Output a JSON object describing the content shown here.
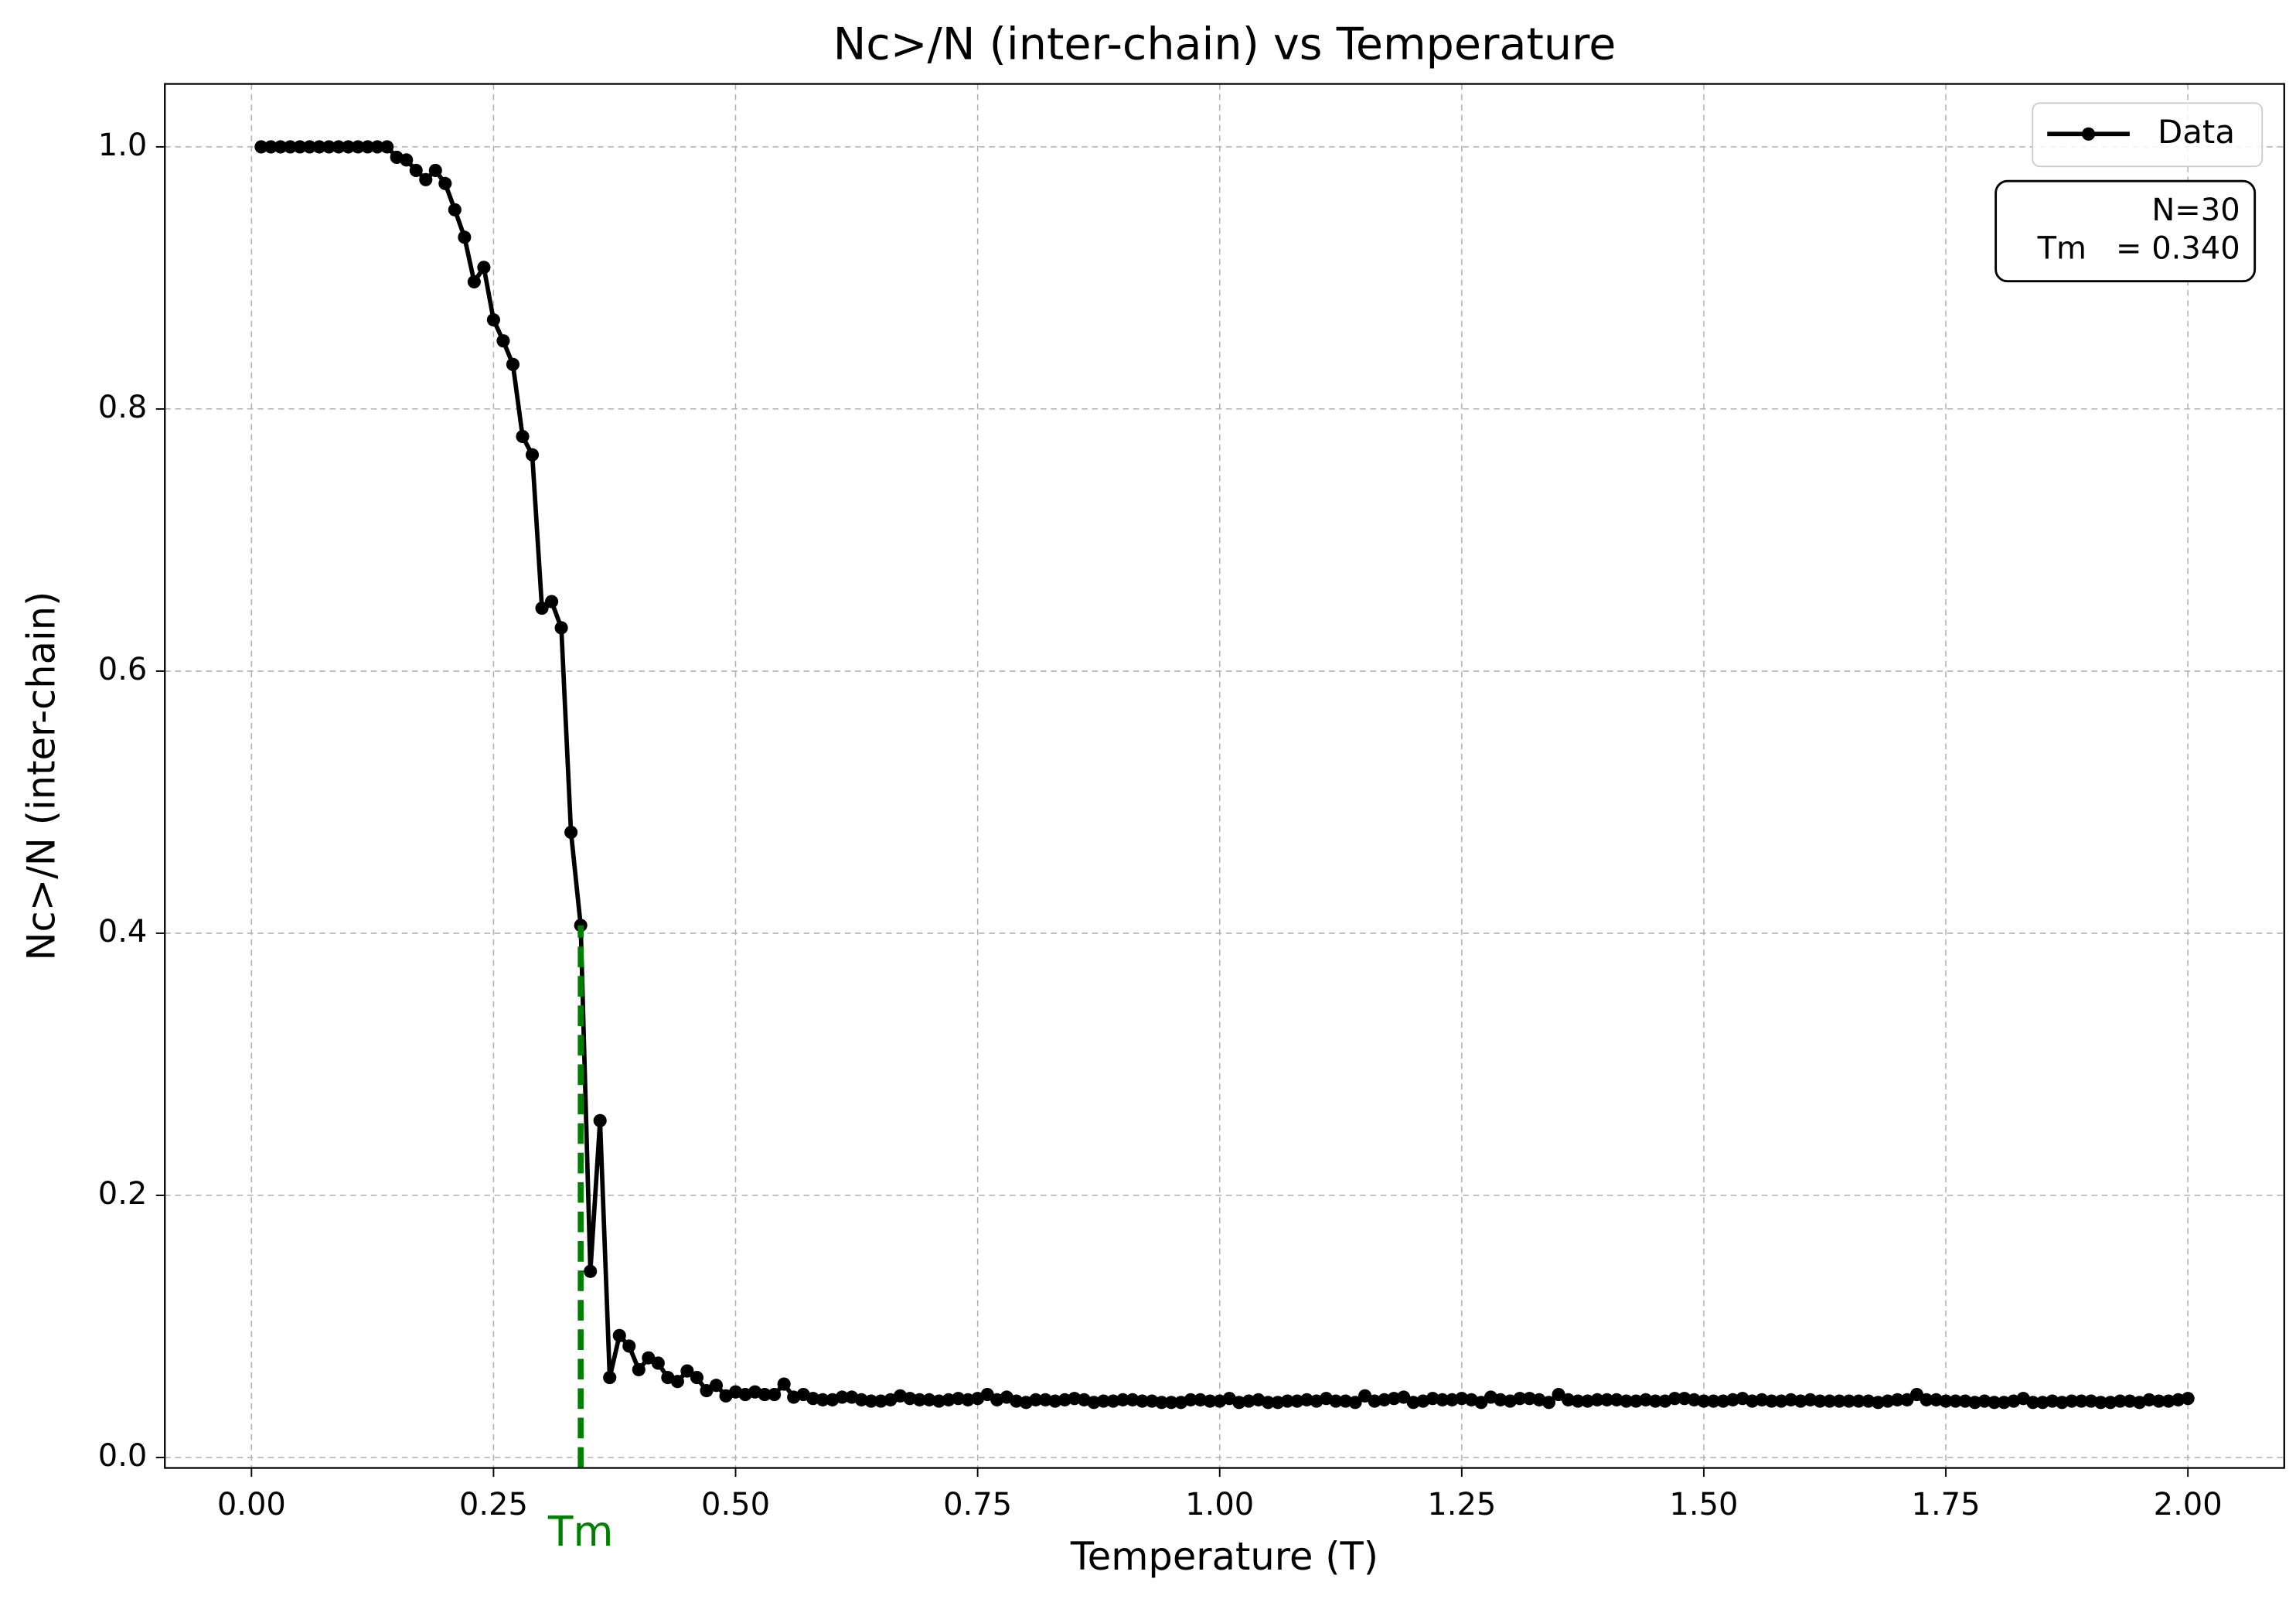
{
  "chart_data": {
    "type": "line",
    "title": "Nc>/N (inter-chain) vs Temperature",
    "xlabel": "Temperature (T)",
    "ylabel": "Nc>/N (inter-chain)",
    "x": [
      0.01,
      0.02,
      0.03,
      0.04,
      0.05,
      0.06,
      0.07,
      0.08,
      0.09,
      0.1,
      0.11,
      0.12,
      0.13,
      0.14,
      0.15,
      0.16,
      0.17,
      0.18,
      0.19,
      0.2,
      0.21,
      0.22,
      0.23,
      0.24,
      0.25,
      0.26,
      0.27,
      0.28,
      0.29,
      0.3,
      0.31,
      0.32,
      0.33,
      0.34,
      0.35,
      0.36,
      0.37,
      0.38,
      0.39,
      0.4,
      0.41,
      0.42,
      0.43,
      0.44,
      0.45,
      0.46,
      0.47,
      0.48,
      0.49,
      0.5,
      0.51,
      0.52,
      0.53,
      0.54,
      0.55,
      0.56,
      0.57,
      0.58,
      0.59,
      0.6,
      0.61,
      0.62,
      0.63,
      0.64,
      0.65,
      0.66,
      0.67,
      0.68,
      0.69,
      0.7,
      0.71,
      0.72,
      0.73,
      0.74,
      0.75,
      0.76,
      0.77,
      0.78,
      0.79,
      0.8,
      0.81,
      0.82,
      0.83,
      0.84,
      0.85,
      0.86,
      0.87,
      0.88,
      0.89,
      0.9,
      0.91,
      0.92,
      0.93,
      0.94,
      0.95,
      0.96,
      0.97,
      0.98,
      0.99,
      1.0,
      1.01,
      1.02,
      1.03,
      1.04,
      1.05,
      1.06,
      1.07,
      1.08,
      1.09,
      1.1,
      1.11,
      1.12,
      1.13,
      1.14,
      1.15,
      1.16,
      1.17,
      1.18,
      1.19,
      1.2,
      1.21,
      1.22,
      1.23,
      1.24,
      1.25,
      1.26,
      1.27,
      1.28,
      1.29,
      1.3,
      1.31,
      1.32,
      1.33,
      1.34,
      1.35,
      1.36,
      1.37,
      1.38,
      1.39,
      1.4,
      1.41,
      1.42,
      1.43,
      1.44,
      1.45,
      1.46,
      1.47,
      1.48,
      1.49,
      1.5,
      1.51,
      1.52,
      1.53,
      1.54,
      1.55,
      1.56,
      1.57,
      1.58,
      1.59,
      1.6,
      1.61,
      1.62,
      1.63,
      1.64,
      1.65,
      1.66,
      1.67,
      1.68,
      1.69,
      1.7,
      1.71,
      1.72,
      1.73,
      1.74,
      1.75,
      1.76,
      1.77,
      1.78,
      1.79,
      1.8,
      1.81,
      1.82,
      1.83,
      1.84,
      1.85,
      1.86,
      1.87,
      1.88,
      1.89,
      1.9,
      1.91,
      1.92,
      1.93,
      1.94,
      1.95,
      1.96,
      1.97,
      1.98,
      1.99,
      2.0
    ],
    "series": [
      {
        "name": "Data",
        "color": "#000000",
        "values": [
          1.0,
          1.0,
          1.0,
          1.0,
          1.0,
          1.0,
          1.0,
          1.0,
          1.0,
          1.0,
          1.0,
          1.0,
          1.0,
          1.0,
          0.992,
          0.99,
          0.982,
          0.975,
          0.982,
          0.972,
          0.952,
          0.931,
          0.897,
          0.908,
          0.868,
          0.852,
          0.834,
          0.779,
          0.765,
          0.648,
          0.653,
          0.633,
          0.477,
          0.406,
          0.142,
          0.257,
          0.061,
          0.093,
          0.085,
          0.067,
          0.076,
          0.072,
          0.061,
          0.058,
          0.066,
          0.061,
          0.051,
          0.055,
          0.047,
          0.05,
          0.048,
          0.05,
          0.048,
          0.048,
          0.056,
          0.046,
          0.048,
          0.045,
          0.044,
          0.044,
          0.046,
          0.046,
          0.044,
          0.043,
          0.043,
          0.044,
          0.047,
          0.045,
          0.044,
          0.044,
          0.043,
          0.044,
          0.045,
          0.044,
          0.045,
          0.048,
          0.044,
          0.046,
          0.043,
          0.042,
          0.044,
          0.044,
          0.043,
          0.044,
          0.045,
          0.044,
          0.042,
          0.043,
          0.043,
          0.044,
          0.044,
          0.043,
          0.043,
          0.042,
          0.042,
          0.042,
          0.044,
          0.044,
          0.043,
          0.043,
          0.045,
          0.042,
          0.043,
          0.044,
          0.042,
          0.042,
          0.043,
          0.043,
          0.044,
          0.043,
          0.045,
          0.043,
          0.043,
          0.042,
          0.047,
          0.043,
          0.044,
          0.045,
          0.046,
          0.042,
          0.043,
          0.045,
          0.044,
          0.044,
          0.045,
          0.044,
          0.042,
          0.046,
          0.044,
          0.043,
          0.045,
          0.045,
          0.044,
          0.042,
          0.048,
          0.044,
          0.043,
          0.043,
          0.044,
          0.044,
          0.044,
          0.043,
          0.043,
          0.044,
          0.043,
          0.043,
          0.045,
          0.045,
          0.044,
          0.043,
          0.043,
          0.043,
          0.044,
          0.045,
          0.043,
          0.044,
          0.043,
          0.043,
          0.044,
          0.043,
          0.044,
          0.043,
          0.043,
          0.043,
          0.043,
          0.043,
          0.043,
          0.042,
          0.043,
          0.044,
          0.044,
          0.048,
          0.044,
          0.044,
          0.043,
          0.043,
          0.043,
          0.042,
          0.043,
          0.042,
          0.042,
          0.043,
          0.045,
          0.042,
          0.042,
          0.043,
          0.042,
          0.043,
          0.043,
          0.043,
          0.042,
          0.042,
          0.043,
          0.043,
          0.042,
          0.044,
          0.043,
          0.043,
          0.044,
          0.045
        ]
      }
    ],
    "xlim": [
      -0.0895,
      2.0995
    ],
    "ylim": [
      -0.008,
      1.048
    ],
    "xticks": [
      {
        "value": 0,
        "label": "0.00"
      },
      {
        "value": 0.25,
        "label": "0.25"
      },
      {
        "value": 0.5,
        "label": "0.50"
      },
      {
        "value": 0.75,
        "label": "0.75"
      },
      {
        "value": 1,
        "label": "1.00"
      },
      {
        "value": 1.25,
        "label": "1.25"
      },
      {
        "value": 1.5,
        "label": "1.50"
      },
      {
        "value": 1.75,
        "label": "1.75"
      },
      {
        "value": 2,
        "label": "2.00"
      }
    ],
    "yticks": [
      {
        "value": 0,
        "label": "0.0"
      },
      {
        "value": 0.2,
        "label": "0.2"
      },
      {
        "value": 0.4,
        "label": "0.4"
      },
      {
        "value": 0.6,
        "label": "0.6"
      },
      {
        "value": 0.8,
        "label": "0.8"
      },
      {
        "value": 1,
        "label": "1.0"
      }
    ],
    "grid": true,
    "legend": "upper right",
    "vline": {
      "x": 0.34,
      "y": [
        0,
        0.406
      ],
      "label": "Tm",
      "color": "#008000"
    },
    "annotation": [
      "N=30",
      "Tm   = 0.340"
    ]
  }
}
